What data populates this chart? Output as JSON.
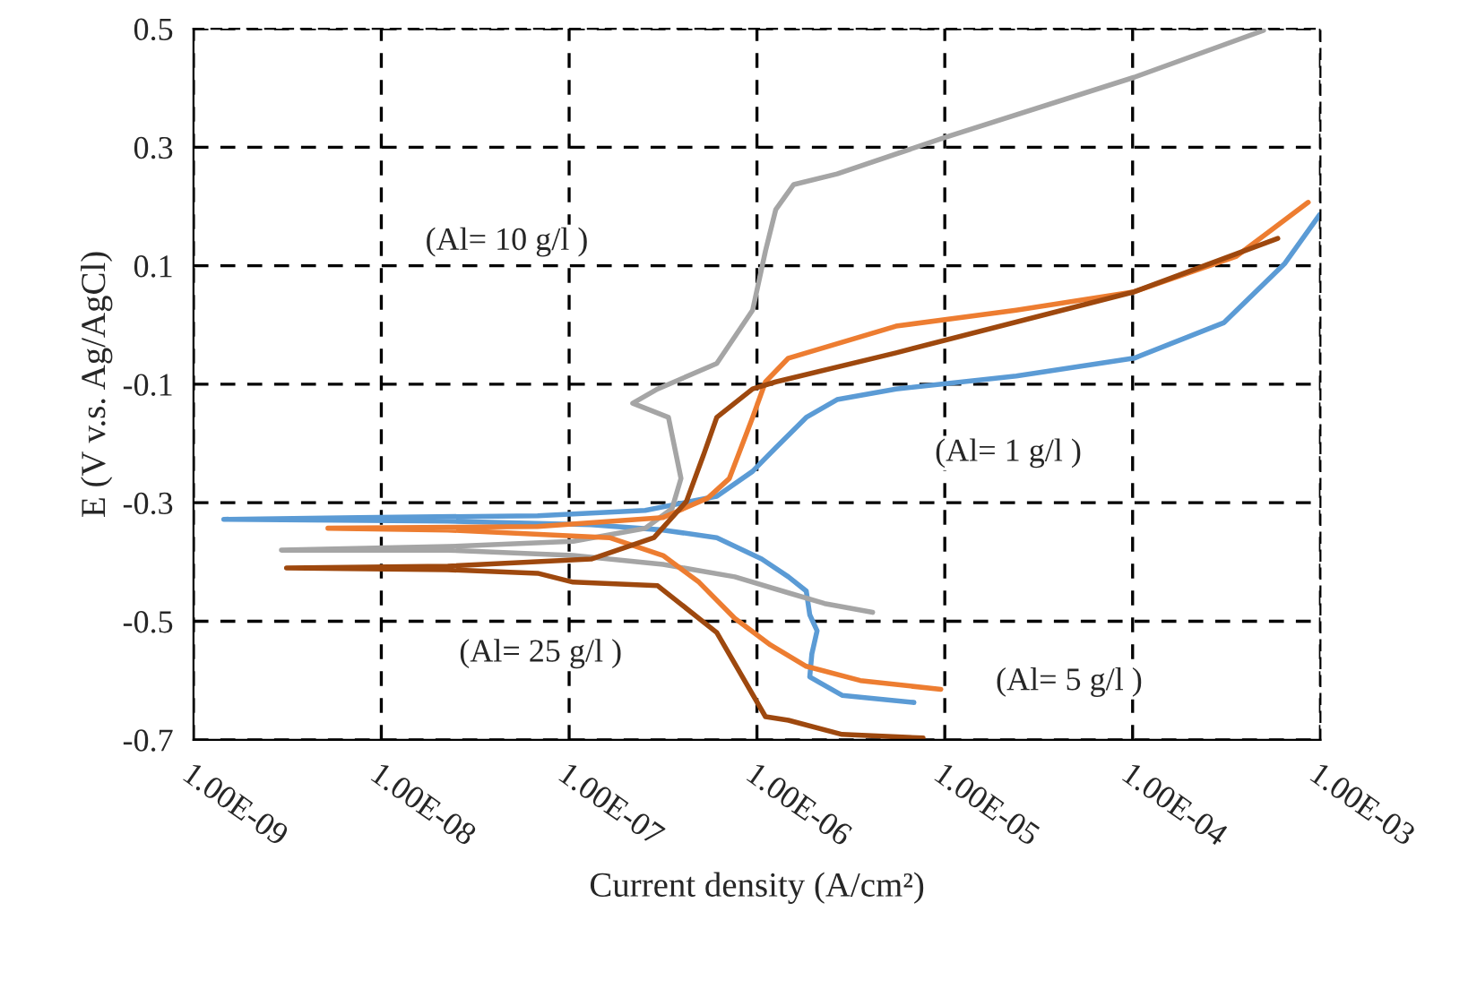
{
  "chart_data": {
    "type": "line",
    "xlabel": "Current density (A/cm²)",
    "ylabel": "E (V v.s. Ag/AgCl)",
    "log": "x",
    "xlim": [
      1e-09,
      0.001
    ],
    "xticks": [
      {
        "value": 1e-09,
        "label": "1.00E-09"
      },
      {
        "value": 1e-08,
        "label": "1.00E-08"
      },
      {
        "value": 1e-07,
        "label": "1.00E-07"
      },
      {
        "value": 1e-06,
        "label": "1.00E-06"
      },
      {
        "value": 1e-05,
        "label": "1.00E-05"
      },
      {
        "value": 0.0001,
        "label": "1.00E-04"
      },
      {
        "value": 0.001,
        "label": "1.00E-03"
      }
    ],
    "ylim": [
      -0.7,
      0.5
    ],
    "yticks": [
      {
        "value": -0.7,
        "label": "-0.7"
      },
      {
        "value": -0.5,
        "label": "-0.5"
      },
      {
        "value": -0.3,
        "label": "-0.3"
      },
      {
        "value": -0.1,
        "label": "-0.1"
      },
      0.1,
      0.3,
      0.5
    ],
    "grid": true,
    "legend": false,
    "line_style": "solid",
    "marker": "none",
    "series": [
      {
        "color": "#5b9bd5",
        "x": [
          6.85e-06,
          2.84e-06,
          1.91e-06,
          1.96e-06,
          2.09e-06,
          1.91e-06,
          1.83e-06,
          1.47e-06,
          1.06e-06,
          6.11e-07,
          3.16e-07,
          1.31e-07,
          2.26e-08,
          1.45e-09,
          7.55e-09,
          6.79e-08,
          2.54e-07,
          6.11e-07,
          9.48e-07,
          1.26e-06,
          1.83e-06,
          2.67e-06,
          5.5e-06,
          2.4e-05,
          0.000102,
          0.000307,
          0.000647,
          0.00099
        ],
        "values": [
          -0.637,
          -0.625,
          -0.594,
          -0.555,
          -0.516,
          -0.489,
          -0.449,
          -0.425,
          -0.395,
          -0.359,
          -0.346,
          -0.337,
          -0.331,
          -0.328,
          -0.325,
          -0.322,
          -0.313,
          -0.289,
          -0.247,
          -0.207,
          -0.156,
          -0.126,
          -0.108,
          -0.086,
          -0.056,
          0.004,
          0.104,
          0.186
        ]
      },
      {
        "color": "#a5a5a5",
        "x": [
          4.13e-06,
          2.29e-06,
          1.47e-06,
          7.62e-07,
          3.16e-07,
          1.05e-07,
          2.26e-08,
          2.94e-09,
          2.26e-08,
          1.05e-07,
          2.54e-07,
          3.53e-07,
          3.94e-07,
          3.38e-07,
          2.18e-07,
          2.96e-07,
          6.11e-07,
          9.48e-07,
          1.11e-06,
          1.26e-06,
          1.57e-06,
          2.67e-06,
          9.95e-06,
          0.000102,
          0.000498
        ],
        "values": [
          -0.485,
          -0.47,
          -0.452,
          -0.425,
          -0.404,
          -0.389,
          -0.38,
          -0.38,
          -0.374,
          -0.365,
          -0.343,
          -0.31,
          -0.259,
          -0.156,
          -0.132,
          -0.108,
          -0.065,
          0.025,
          0.125,
          0.195,
          0.237,
          0.255,
          0.316,
          0.418,
          0.497
        ]
      },
      {
        "color": "#ed7d31",
        "x": [
          9.53e-06,
          3.55e-06,
          1.83e-06,
          1.18e-06,
          7.62e-07,
          4.91e-07,
          3.16e-07,
          1.64e-07,
          2.26e-08,
          5.2e-09,
          6.79e-08,
          3.16e-07,
          5.48e-07,
          7.13e-07,
          9.48e-07,
          1.11e-06,
          1.47e-06,
          5.5e-06,
          2.4e-05,
          0.000102,
          0.000357,
          0.000861
        ],
        "values": [
          -0.615,
          -0.6,
          -0.576,
          -0.54,
          -0.495,
          -0.434,
          -0.389,
          -0.359,
          -0.346,
          -0.343,
          -0.34,
          -0.325,
          -0.292,
          -0.259,
          -0.156,
          -0.096,
          -0.056,
          -0.002,
          0.025,
          0.056,
          0.116,
          0.207
        ]
      },
      {
        "color": "#9e480e",
        "x": [
          7.66e-06,
          2.84e-06,
          1.47e-06,
          1.11e-06,
          6.11e-07,
          2.96e-07,
          1.05e-07,
          6.79e-08,
          2.26e-08,
          3.13e-09,
          2.26e-08,
          1.31e-07,
          2.83e-07,
          4.21e-07,
          5.24e-07,
          6.11e-07,
          9.48e-07,
          1.26e-06,
          5.5e-06,
          0.000102,
          0.000593
        ],
        "values": [
          -0.697,
          -0.691,
          -0.667,
          -0.661,
          -0.519,
          -0.44,
          -0.434,
          -0.419,
          -0.413,
          -0.41,
          -0.407,
          -0.395,
          -0.359,
          -0.298,
          -0.216,
          -0.156,
          -0.108,
          -0.096,
          -0.047,
          0.056,
          0.146
        ]
      }
    ],
    "annotations": [
      "(Al= 10 g/l )",
      "(Al= 1 g/l )",
      "(Al= 25 g/l )",
      "(Al= 5 g/l )"
    ]
  }
}
